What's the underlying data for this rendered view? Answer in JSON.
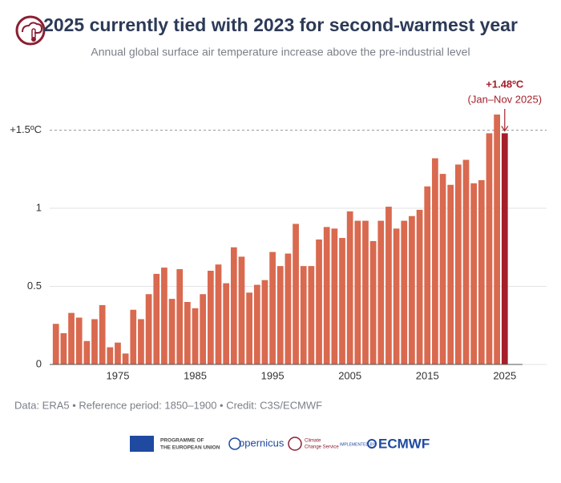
{
  "chart_data": {
    "type": "bar",
    "title": "2025 currently tied with 2023 for second-warmest year",
    "subtitle": "Annual global surface air temperature increase above the pre-industrial level",
    "x": [
      1967,
      1968,
      1969,
      1970,
      1971,
      1972,
      1973,
      1974,
      1975,
      1976,
      1977,
      1978,
      1979,
      1980,
      1981,
      1982,
      1983,
      1984,
      1985,
      1986,
      1987,
      1988,
      1989,
      1990,
      1991,
      1992,
      1993,
      1994,
      1995,
      1996,
      1997,
      1998,
      1999,
      2000,
      2001,
      2002,
      2003,
      2004,
      2005,
      2006,
      2007,
      2008,
      2009,
      2010,
      2011,
      2012,
      2013,
      2014,
      2015,
      2016,
      2017,
      2018,
      2019,
      2020,
      2021,
      2022,
      2023,
      2024,
      2025
    ],
    "values": [
      0.26,
      0.2,
      0.33,
      0.3,
      0.15,
      0.29,
      0.38,
      0.11,
      0.14,
      0.07,
      0.35,
      0.29,
      0.45,
      0.58,
      0.62,
      0.42,
      0.61,
      0.4,
      0.36,
      0.45,
      0.6,
      0.64,
      0.52,
      0.75,
      0.69,
      0.46,
      0.51,
      0.54,
      0.72,
      0.63,
      0.71,
      0.9,
      0.63,
      0.63,
      0.8,
      0.88,
      0.87,
      0.81,
      0.98,
      0.92,
      0.92,
      0.79,
      0.92,
      1.01,
      0.87,
      0.92,
      0.95,
      0.99,
      1.14,
      1.32,
      1.22,
      1.15,
      1.28,
      1.31,
      1.16,
      1.18,
      1.48,
      1.6,
      1.48
    ],
    "color": "#d9694f",
    "highlight_color": "#a51f2a",
    "xlim": [
      1966.2,
      2027.3
    ],
    "xticks": [
      1975,
      1985,
      1995,
      2005,
      2015,
      2025
    ],
    "ylim": [
      0,
      1.7
    ],
    "yticks": [
      0,
      0.5,
      1,
      {
        "value": 1.5,
        "label": "+1.5ºC"
      }
    ],
    "grid": true,
    "annotation": {
      "x": 2025,
      "value": 1.48,
      "label": "+1.48ºC",
      "note": "(Jan–Nov 2025)"
    },
    "source": "Data: ERA5 • Reference period: 1850–1900 • Credit: C3S/ECMWF"
  },
  "logos": {
    "eu": [
      "PROGRAMME OF",
      "THE EUROPEAN UNION"
    ],
    "copernicus": "opernicus",
    "c3s": [
      "Climate",
      "Change Service"
    ],
    "implemented": "IMPLEMENTED BY",
    "ecmwf": "ECMWF"
  }
}
